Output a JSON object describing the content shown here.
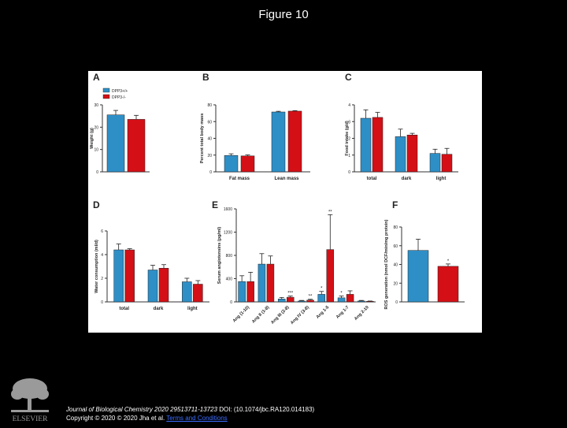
{
  "slide": {
    "title": "Figure 10"
  },
  "colors": {
    "wt": "#2e8fc7",
    "ko": "#d40f16",
    "axis": "#333333"
  },
  "legend": {
    "wt_label": "DPP3+/+",
    "ko_label": "DPP3-/-"
  },
  "chart_data": [
    {
      "panel": "A",
      "type": "bar",
      "title": "",
      "ylabel": "Weight (g)",
      "xlabel": "",
      "ylim": [
        0,
        30
      ],
      "yticks": [
        0,
        10,
        20,
        30
      ],
      "categories": [
        ""
      ],
      "series": [
        {
          "name": "DPP3+/+",
          "values": [
            25.5
          ],
          "errors": [
            2
          ]
        },
        {
          "name": "DPP3-/-",
          "values": [
            23.5
          ],
          "errors": [
            1.8
          ]
        }
      ]
    },
    {
      "panel": "B",
      "type": "bar",
      "ylabel": "Percent total body mass",
      "ylim": [
        0,
        80
      ],
      "yticks": [
        0,
        20,
        40,
        60,
        80
      ],
      "categories": [
        "Fat mass",
        "Lean mass"
      ],
      "series": [
        {
          "name": "DPP3+/+",
          "values": [
            19.5,
            71.5
          ],
          "errors": [
            2,
            0.8
          ]
        },
        {
          "name": "DPP3-/-",
          "values": [
            19,
            72.5
          ],
          "errors": [
            1.2,
            0.6
          ]
        }
      ]
    },
    {
      "panel": "C",
      "type": "bar",
      "ylabel": "Food intake (g/d)",
      "ylim": [
        0,
        4
      ],
      "yticks": [
        0,
        1,
        2,
        3,
        4
      ],
      "categories": [
        "total",
        "dark",
        "light"
      ],
      "series": [
        {
          "name": "DPP3+/+",
          "values": [
            3.2,
            2.1,
            1.1
          ],
          "errors": [
            0.5,
            0.45,
            0.25
          ]
        },
        {
          "name": "DPP3-/-",
          "values": [
            3.25,
            2.2,
            1.05
          ],
          "errors": [
            0.3,
            0.1,
            0.35
          ]
        }
      ]
    },
    {
      "panel": "D",
      "type": "bar",
      "ylabel": "Water consumption (ml/d)",
      "ylim": [
        0,
        6
      ],
      "yticks": [
        0,
        2,
        4,
        6
      ],
      "categories": [
        "total",
        "dark",
        "light"
      ],
      "series": [
        {
          "name": "DPP3+/+",
          "values": [
            4.4,
            2.7,
            1.7
          ],
          "errors": [
            0.5,
            0.4,
            0.3
          ]
        },
        {
          "name": "DPP3-/-",
          "values": [
            4.4,
            2.85,
            1.5
          ],
          "errors": [
            0.1,
            0.3,
            0.3
          ]
        }
      ]
    },
    {
      "panel": "E",
      "type": "bar",
      "ylabel": "Serum angiotensins (pg/ml)",
      "ylim": [
        0,
        1600
      ],
      "yticks": [
        0,
        400,
        800,
        1200,
        1600
      ],
      "categories": [
        "Ang (1-10)",
        "Ang II (1-8)",
        "Ang III (2-8)",
        "Ang IV (3-8)",
        "Ang 1-5",
        "Ang 1-7",
        "Ang 2-10"
      ],
      "series": [
        {
          "name": "DPP3+/+",
          "values": [
            350,
            650,
            50,
            15,
            130,
            70,
            15
          ],
          "errors": [
            100,
            180,
            25,
            10,
            50,
            30,
            10
          ]
        },
        {
          "name": "DPP3-/-",
          "values": [
            350,
            650,
            80,
            30,
            900,
            130,
            10
          ],
          "errors": [
            160,
            140,
            20,
            15,
            600,
            60,
            5
          ]
        }
      ],
      "annotations": [
        {
          "category": "Ang III (2-8)",
          "series": "DPP3-/-",
          "text": "***"
        },
        {
          "category": "Ang IV (3-8)",
          "series": "DPP3-/-",
          "text": "**"
        },
        {
          "category": "Ang 1-5",
          "series": "DPP3+/+",
          "text": "*"
        },
        {
          "category": "Ang 1-5",
          "series": "DPP3-/-",
          "text": "**"
        },
        {
          "category": "Ang 1-7",
          "series": "DPP3+/+",
          "text": "*"
        }
      ]
    },
    {
      "panel": "F",
      "type": "bar",
      "ylabel": "ROS generation (nmol DCF/min/mg protein)",
      "ylim": [
        0,
        80
      ],
      "yticks": [
        0,
        20,
        40,
        60,
        80
      ],
      "categories": [
        ""
      ],
      "series": [
        {
          "name": "DPP3+/+",
          "values": [
            55
          ],
          "errors": [
            12
          ]
        },
        {
          "name": "DPP3-/-",
          "values": [
            38
          ],
          "errors": [
            2.5
          ]
        }
      ],
      "annotations": [
        {
          "category": "",
          "series": "DPP3-/-",
          "text": "*"
        }
      ]
    }
  ],
  "footer": {
    "journal": "Journal of Biological Chemistry 2020 29513711-13723",
    "doi": "DOI: (10.1074/jbc.RA120.014183)",
    "copyright": "Copyright © 2020 © 2020 Jha et al.",
    "license": "Terms and Conditions"
  },
  "logo": {
    "wordmark": "ELSEVIER"
  }
}
